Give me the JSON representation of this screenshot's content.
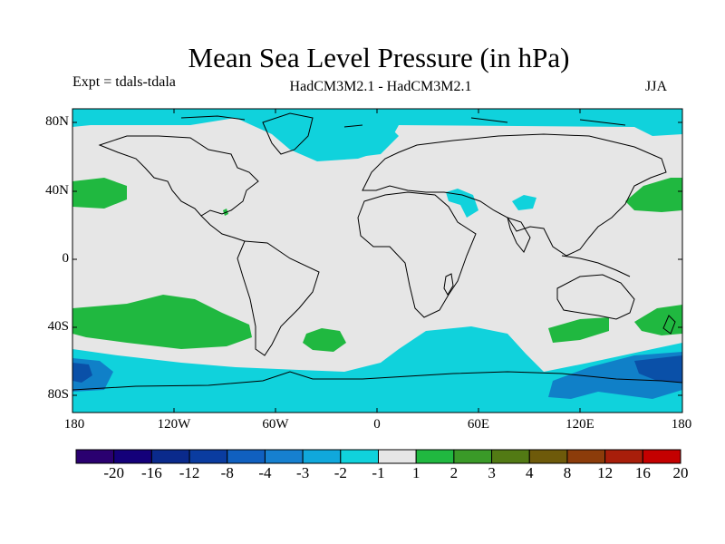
{
  "title": "Mean Sea Level Pressure (in hPa)",
  "experiment": "Expt = tdals-tdala",
  "models": "HadCM3M2.1 - HadCM3M2.1",
  "season": "JJA",
  "lat_labels": [
    "80N",
    "40N",
    "0",
    "40S",
    "80S"
  ],
  "lon_labels": [
    "180",
    "120W",
    "60W",
    "0",
    "60E",
    "120E",
    "180"
  ],
  "colorbar": {
    "labels": [
      "-20",
      "-16",
      "-12",
      "-8",
      "-4",
      "-3",
      "-2",
      "-1",
      "1",
      "2",
      "3",
      "4",
      "8",
      "12",
      "16",
      "20"
    ],
    "colors": [
      "#2a0070",
      "#14007a",
      "#0a2a8c",
      "#0a3ca0",
      "#1060c0",
      "#1680d0",
      "#10a8dc",
      "#10d2dc",
      "#e6e6e6",
      "#20b840",
      "#3a9a28",
      "#527a14",
      "#6e5a0a",
      "#8c3c0a",
      "#a81e0a",
      "#c40000"
    ]
  },
  "colors": {
    "background": "#e6e6e6",
    "negative": "#10d2dc",
    "negative_strong": "#1080c8",
    "negative_stronger": "#0a50a8",
    "positive": "#20b840"
  }
}
